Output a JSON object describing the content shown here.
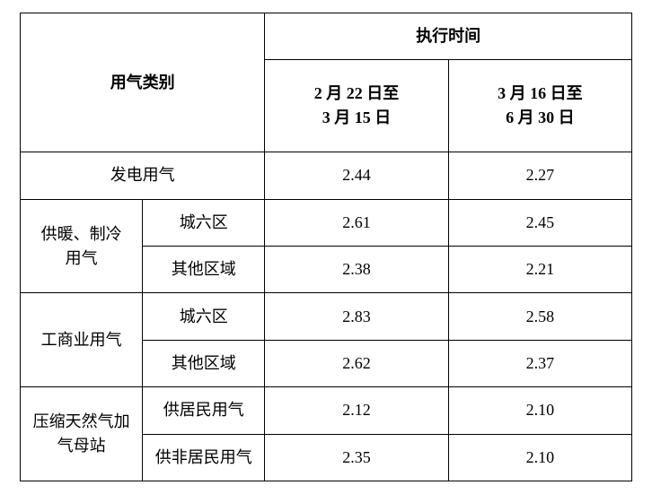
{
  "header": {
    "category_label": "用气类别",
    "period_label": "执行时间",
    "period1_line1": "2 月 22 日至",
    "period1_line2": "3 月 15 日",
    "period2_line1": "3 月 16 日至",
    "period2_line2": "6 月 30 日"
  },
  "rows": {
    "r0": {
      "cat": "发电用气",
      "p1": "2.44",
      "p2": "2.27"
    },
    "r1": {
      "cat_line1": "供暖、制冷",
      "cat_line2": "用气",
      "sub0": {
        "name": "城六区",
        "p1": "2.61",
        "p2": "2.45"
      },
      "sub1": {
        "name": "其他区域",
        "p1": "2.38",
        "p2": "2.21"
      }
    },
    "r2": {
      "cat": "工商业用气",
      "sub0": {
        "name": "城六区",
        "p1": "2.83",
        "p2": "2.58"
      },
      "sub1": {
        "name": "其他区域",
        "p1": "2.62",
        "p2": "2.37"
      }
    },
    "r3": {
      "cat_line1": "压缩天然气加",
      "cat_line2": "气母站",
      "sub0": {
        "name": "供居民用气",
        "p1": "2.12",
        "p2": "2.10"
      },
      "sub1": {
        "name": "供非居民用气",
        "p1": "2.35",
        "p2": "2.10"
      }
    }
  },
  "style": {
    "font_family": "SimSun",
    "font_size_pt": 14,
    "border_color": "#000000",
    "background_color": "#ffffff",
    "text_color": "#000000",
    "col_widths_pct": [
      20,
      20,
      30,
      30
    ],
    "header_bold": true
  }
}
